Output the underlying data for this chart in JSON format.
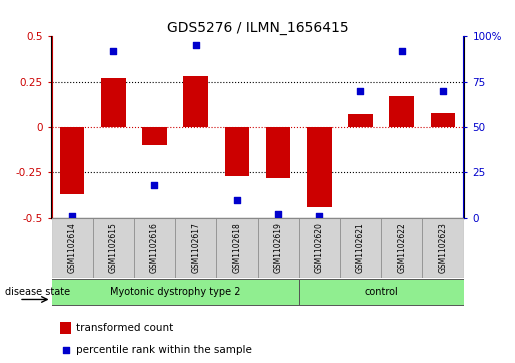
{
  "title": "GDS5276 / ILMN_1656415",
  "samples": [
    "GSM1102614",
    "GSM1102615",
    "GSM1102616",
    "GSM1102617",
    "GSM1102618",
    "GSM1102619",
    "GSM1102620",
    "GSM1102621",
    "GSM1102622",
    "GSM1102623"
  ],
  "transformed_count": [
    -0.37,
    0.27,
    -0.1,
    0.28,
    -0.27,
    -0.28,
    -0.44,
    0.07,
    0.17,
    0.08
  ],
  "percentile_rank": [
    1,
    92,
    18,
    95,
    10,
    2,
    1,
    70,
    92,
    70
  ],
  "ylim_left": [
    -0.5,
    0.5
  ],
  "ylim_right": [
    0,
    100
  ],
  "yticks_left": [
    -0.5,
    -0.25,
    0,
    0.25,
    0.5
  ],
  "yticks_right": [
    0,
    25,
    50,
    75,
    100
  ],
  "ytick_labels_left": [
    "-0.5",
    "-0.25",
    "0",
    "0.25",
    "0.5"
  ],
  "ytick_labels_right": [
    "0",
    "25",
    "50",
    "75",
    "100%"
  ],
  "bar_color": "#cc0000",
  "dot_color": "#0000cc",
  "group1_label": "Myotonic dystrophy type 2",
  "group2_label": "control",
  "group1_indices": [
    0,
    1,
    2,
    3,
    4,
    5
  ],
  "group2_indices": [
    6,
    7,
    8,
    9
  ],
  "group1_color": "#90ee90",
  "group2_color": "#90ee90",
  "sample_box_color": "#d3d3d3",
  "disease_state_label": "disease state",
  "legend_bar_label": "transformed count",
  "legend_dot_label": "percentile rank within the sample",
  "red_dotted_color": "#cc0000",
  "background_color": "#ffffff",
  "bar_width": 0.6
}
